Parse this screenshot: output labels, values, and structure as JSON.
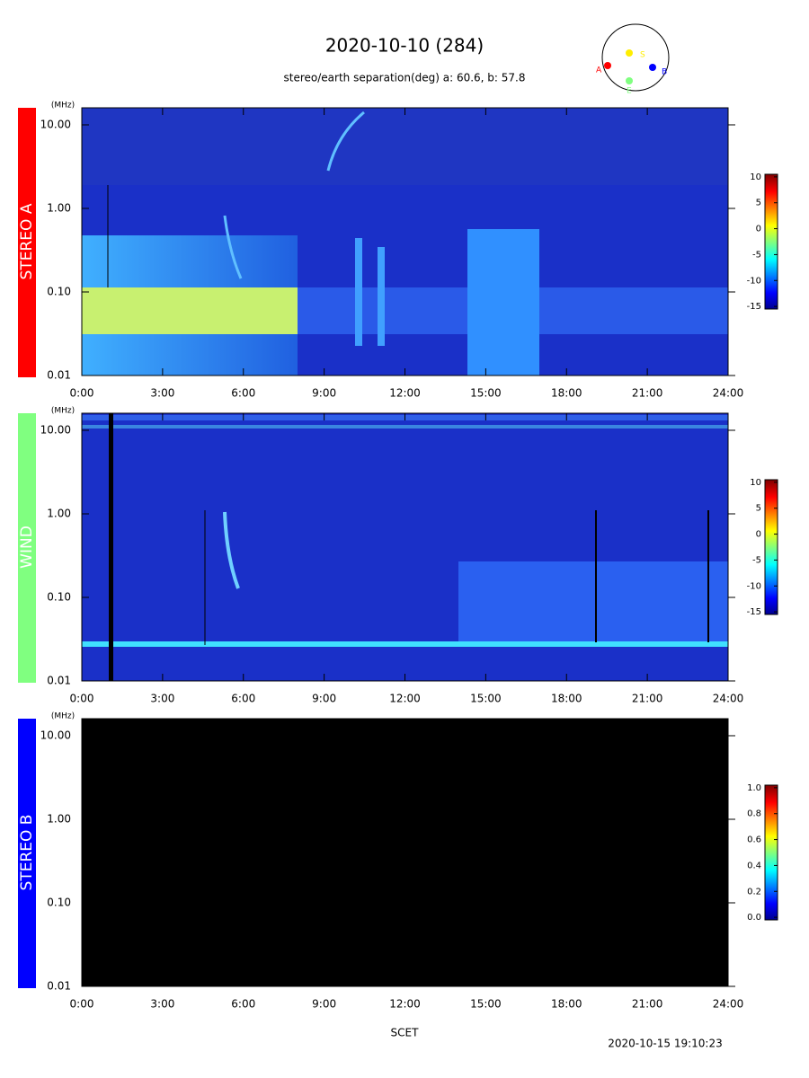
{
  "header": {
    "title": "2020-10-10 (284)",
    "subtitle": "stereo/earth separation(deg) a:  60.6, b:  57.8"
  },
  "orbit": {
    "sun": "S",
    "a": "A",
    "b": "B",
    "earth": "E"
  },
  "x_label": "SCET",
  "timestamp": "2020-10-15 19:10:23",
  "chart_data": [
    {
      "type": "spectrogram",
      "label": "STEREO A",
      "color": "#ff0000",
      "y_unit": "(MHz)",
      "xlim": [
        0,
        24
      ],
      "xticks": [
        {
          "value": 0,
          "label": "0:00"
        },
        {
          "value": 3,
          "label": "3:00"
        },
        {
          "value": 6,
          "label": "6:00"
        },
        {
          "value": 9,
          "label": "9:00"
        },
        {
          "value": 12,
          "label": "12:00"
        },
        {
          "value": 15,
          "label": "15:00"
        },
        {
          "value": 18,
          "label": "18:00"
        },
        {
          "value": 21,
          "label": "21:00"
        },
        {
          "value": 24,
          "label": "24:00"
        }
      ],
      "log_y": true,
      "ylim": [
        0.01,
        16
      ],
      "yticks": [
        {
          "value": 0.01,
          "label": "0.01"
        },
        {
          "value": 0.1,
          "label": "0.10"
        },
        {
          "value": 1,
          "label": "1.00"
        },
        {
          "value": 10,
          "label": "10.00"
        }
      ],
      "clim": [
        -15.5,
        10.5
      ],
      "cticks": [
        10,
        5,
        0,
        -5,
        -10,
        -15
      ]
    },
    {
      "type": "spectrogram",
      "label": "WIND",
      "color": "#80ff80",
      "y_unit": "(MHz)",
      "xlim": [
        0,
        24
      ],
      "xticks": [
        {
          "value": 0,
          "label": "0:00"
        },
        {
          "value": 3,
          "label": "3:00"
        },
        {
          "value": 6,
          "label": "6:00"
        },
        {
          "value": 9,
          "label": "9:00"
        },
        {
          "value": 12,
          "label": "12:00"
        },
        {
          "value": 15,
          "label": "15:00"
        },
        {
          "value": 18,
          "label": "18:00"
        },
        {
          "value": 21,
          "label": "21:00"
        },
        {
          "value": 24,
          "label": "24:00"
        }
      ],
      "log_y": true,
      "ylim": [
        0.01,
        16
      ],
      "yticks": [
        {
          "value": 0.01,
          "label": "0.01"
        },
        {
          "value": 0.1,
          "label": "0.10"
        },
        {
          "value": 1,
          "label": "1.00"
        },
        {
          "value": 10,
          "label": "10.00"
        }
      ],
      "clim": [
        -15.5,
        10.5
      ],
      "cticks": [
        10,
        5,
        0,
        -5,
        -10,
        -15
      ]
    },
    {
      "type": "spectrogram",
      "label": "STEREO B",
      "color": "#0000ff",
      "y_unit": "(MHz)",
      "xlim": [
        0,
        24
      ],
      "xticks": [
        {
          "value": 0,
          "label": "0:00"
        },
        {
          "value": 3,
          "label": "3:00"
        },
        {
          "value": 6,
          "label": "6:00"
        },
        {
          "value": 9,
          "label": "9:00"
        },
        {
          "value": 12,
          "label": "12:00"
        },
        {
          "value": 15,
          "label": "15:00"
        },
        {
          "value": 18,
          "label": "18:00"
        },
        {
          "value": 21,
          "label": "21:00"
        },
        {
          "value": 24,
          "label": "24:00"
        }
      ],
      "log_y": true,
      "ylim": [
        0.01,
        16
      ],
      "yticks": [
        {
          "value": 0.01,
          "label": "0.01"
        },
        {
          "value": 0.1,
          "label": "0.10"
        },
        {
          "value": 1,
          "label": "1.00"
        },
        {
          "value": 10,
          "label": "10.00"
        }
      ],
      "clim": [
        -0.02,
        1.02
      ],
      "cticks": [
        {
          "value": 1,
          "label": "1.0"
        },
        {
          "value": 0.8,
          "label": "0.8"
        },
        {
          "value": 0.6,
          "label": "0.6"
        },
        {
          "value": 0.4,
          "label": "0.4"
        },
        {
          "value": 0.2,
          "label": "0.2"
        },
        {
          "value": 0,
          "label": "0.0"
        }
      ]
    }
  ]
}
